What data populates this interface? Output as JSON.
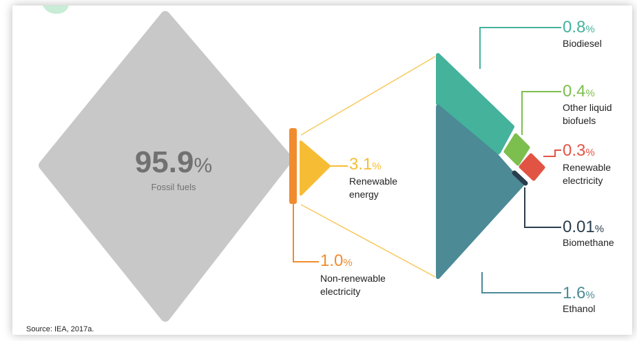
{
  "chart_data": {
    "type": "other",
    "title": "",
    "segments": [
      {
        "id": "fossil",
        "value": "95.9",
        "unit": "%",
        "label": "Fossil fuels",
        "color": "#c8c8c8"
      },
      {
        "id": "renewable",
        "value": "3.1",
        "unit": "%",
        "label": "Renewable energy",
        "color": "#f6bd34"
      },
      {
        "id": "nonrenewable",
        "value": "1.0",
        "unit": "%",
        "label": "Non-renewable electricity",
        "color": "#f08c2e"
      }
    ],
    "renewable_breakdown": [
      {
        "id": "biodiesel",
        "value": "0.8",
        "unit": "%",
        "label": "Biodiesel",
        "color": "#45b29c"
      },
      {
        "id": "other-liquid",
        "value": "0.4",
        "unit": "%",
        "label": "Other liquid biofuels",
        "color": "#7cbf4e"
      },
      {
        "id": "ren-elec",
        "value": "0.3",
        "unit": "%",
        "label": "Renewable electricity",
        "color": "#e15444"
      },
      {
        "id": "biomethane",
        "value": "0.01",
        "unit": "%",
        "label": "Biomethane",
        "color": "#2a3d4c"
      },
      {
        "id": "ethanol",
        "value": "1.6",
        "unit": "%",
        "label": "Ethanol",
        "color": "#4c8a96"
      }
    ]
  },
  "source": "Source: IEA, 2017a."
}
